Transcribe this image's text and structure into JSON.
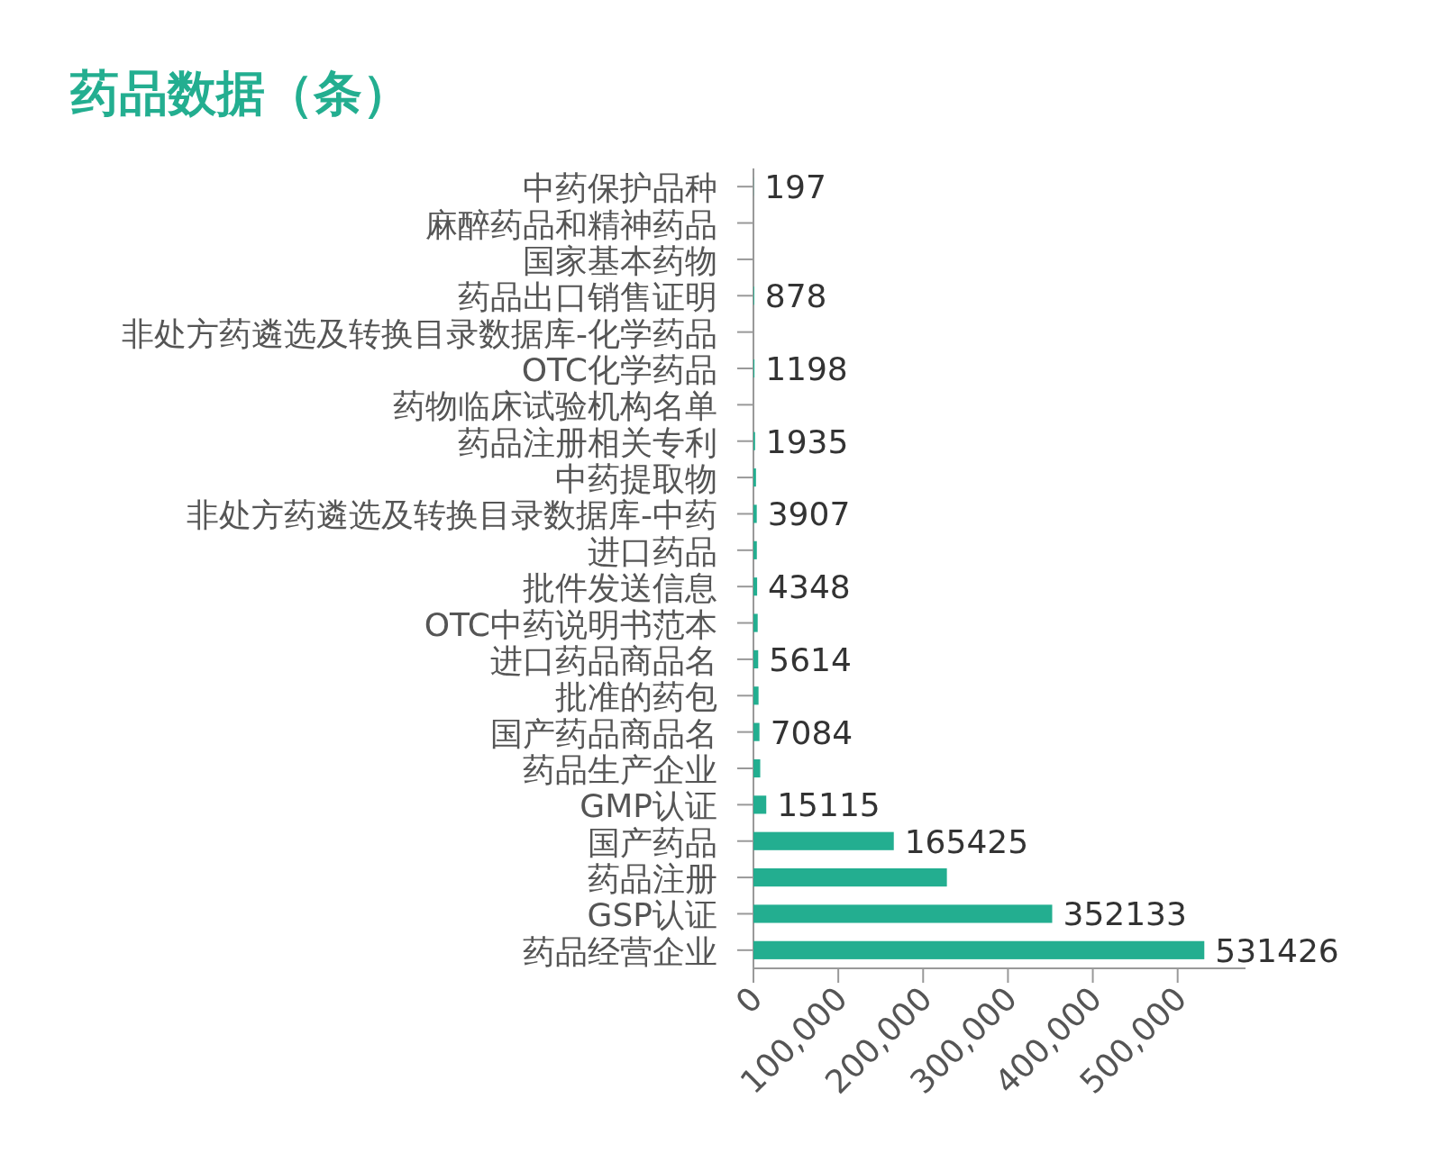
{
  "chart_data": {
    "type": "bar",
    "orientation": "horizontal",
    "title": "药品数据（条）",
    "categories": [
      "中药保护品种",
      "麻醉药品和精神药品",
      "国家基本药物",
      "药品出口销售证明",
      "非处方药遴选及转换目录数据库-化学药品",
      "OTC化学药品",
      "药物临床试验机构名单",
      "药品注册相关专利",
      "中药提取物",
      "非处方药遴选及转换目录数据库-中药",
      "进口药品",
      "批件发送信息",
      "OTC中药说明书范本",
      "进口药品商品名",
      "批准的药包",
      "国产药品商品名",
      "药品生产企业",
      "GMP认证",
      "国产药品",
      "药品注册",
      "GSP认证",
      "药品经营企业"
    ],
    "values": [
      197,
      null,
      null,
      878,
      null,
      1198,
      null,
      1935,
      3000,
      3907,
      4000,
      4348,
      5000,
      5614,
      6000,
      7084,
      8000,
      15115,
      165425,
      228000,
      352133,
      531426
    ],
    "value_labels": [
      "197",
      null,
      null,
      "878",
      null,
      "1198",
      null,
      "1935",
      null,
      "3907",
      null,
      "4348",
      null,
      "5614",
      null,
      "7084",
      null,
      "15115",
      "165425",
      null,
      "352133",
      "531426"
    ],
    "color": "#23ae90",
    "xlim": [
      0,
      580000
    ],
    "xticks": [
      0,
      {
        "value": 100000,
        "label": "100,000"
      },
      {
        "value": 200000,
        "label": "200,000"
      },
      {
        "value": 300000,
        "label": "300,000"
      },
      {
        "value": 400000,
        "label": "400,000"
      },
      {
        "value": 500000,
        "label": "500,000"
      }
    ]
  }
}
